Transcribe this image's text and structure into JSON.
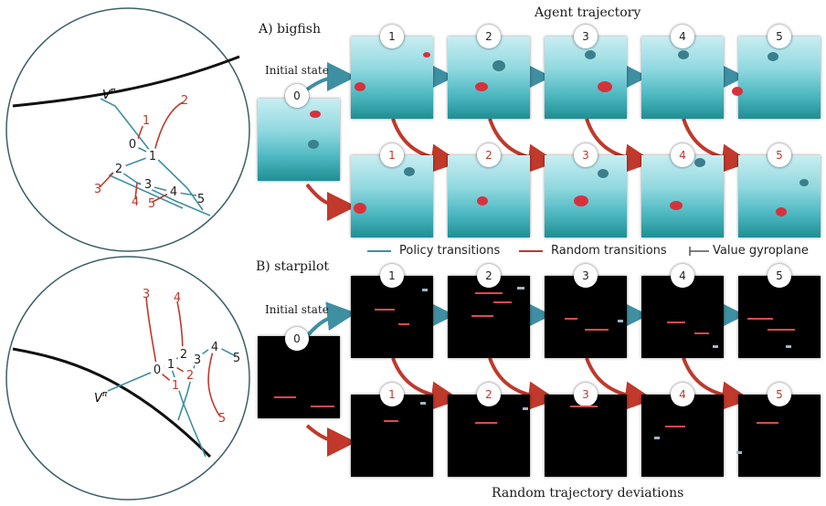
{
  "title_top": "Agent trajectory",
  "title_bottom": "Random trajectory deviations",
  "panel_a": {
    "label": "A) bigfish",
    "initial_state": "Initial state",
    "initial_badge": "0",
    "policy_badges": [
      "1",
      "2",
      "3",
      "4",
      "5"
    ],
    "random_badges": [
      "1",
      "2",
      "3",
      "4",
      "5"
    ]
  },
  "panel_b": {
    "label": "B) starpilot",
    "initial_state": "Initial state",
    "initial_badge": "0",
    "policy_badges": [
      "1",
      "2",
      "3",
      "4",
      "5"
    ],
    "random_badges": [
      "1",
      "2",
      "3",
      "4",
      "5"
    ]
  },
  "legend": {
    "policy": "Policy transitions",
    "random": "Random transitions",
    "value": "Value gyroplane"
  },
  "circle_a": {
    "value_label": "V",
    "value_sup": "π",
    "policy_nodes": [
      "0",
      "1",
      "2",
      "3",
      "4",
      "5"
    ],
    "random_nodes": [
      "1",
      "2",
      "3",
      "4",
      "5"
    ]
  },
  "circle_b": {
    "value_label": "V",
    "value_sup": "π",
    "policy_nodes": [
      "0",
      "1",
      "2",
      "3",
      "4",
      "5"
    ],
    "random_nodes": [
      "1",
      "2",
      "3",
      "4",
      "5"
    ]
  },
  "colors": {
    "policy": "#3f8fa3",
    "random": "#c0392b",
    "value": "#111111",
    "circle": "#3c5f66"
  }
}
